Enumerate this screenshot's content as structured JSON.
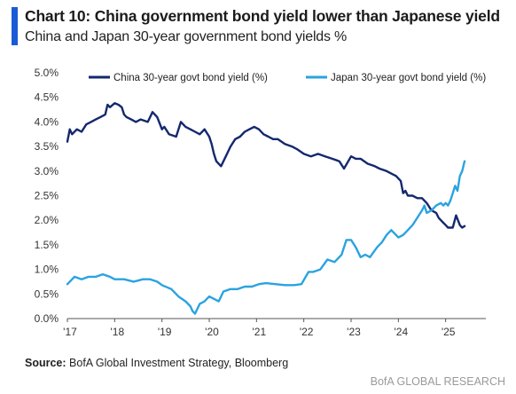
{
  "title": "Chart 10: China government bond yield lower than Japanese yield",
  "subtitle": "China and Japan 30-year government bond yields %",
  "source_label": "Source:",
  "source_text": "BofA Global Investment Strategy, Bloomberg",
  "brand": "BofA GLOBAL RESEARCH",
  "colors": {
    "china": "#14286e",
    "japan": "#2aa3e0",
    "accent": "#1a5ad7",
    "axis": "#555555"
  },
  "chart_data": {
    "type": "line",
    "x_unit": "year",
    "xlim": [
      2017.0,
      2025.85
    ],
    "ylim": [
      0,
      5
    ],
    "y_ticks": [
      0,
      0.5,
      1,
      1.5,
      2,
      2.5,
      3,
      3.5,
      4,
      4.5,
      5
    ],
    "y_tick_labels": [
      "0.0%",
      "0.5%",
      "1.0%",
      "1.5%",
      "2.0%",
      "2.5%",
      "3.0%",
      "3.5%",
      "4.0%",
      "4.5%",
      "5.0%"
    ],
    "x_ticks": [
      2017,
      2018,
      2019,
      2020,
      2021,
      2022,
      2023,
      2024,
      2025
    ],
    "x_tick_labels": [
      "'17",
      "'18",
      "'19",
      "'20",
      "'21",
      "'22",
      "'23",
      "'24",
      "'25"
    ],
    "grid": false,
    "legend_placement": "top",
    "series": [
      {
        "name": "China 30-year govt bond yield (%)",
        "color": "#14286e",
        "points": [
          [
            2017.0,
            3.6
          ],
          [
            2017.05,
            3.85
          ],
          [
            2017.1,
            3.75
          ],
          [
            2017.2,
            3.85
          ],
          [
            2017.3,
            3.8
          ],
          [
            2017.4,
            3.95
          ],
          [
            2017.5,
            4.0
          ],
          [
            2017.6,
            4.05
          ],
          [
            2017.7,
            4.1
          ],
          [
            2017.8,
            4.15
          ],
          [
            2017.85,
            4.35
          ],
          [
            2017.9,
            4.3
          ],
          [
            2018.0,
            4.38
          ],
          [
            2018.08,
            4.35
          ],
          [
            2018.15,
            4.3
          ],
          [
            2018.2,
            4.15
          ],
          [
            2018.25,
            4.1
          ],
          [
            2018.35,
            4.05
          ],
          [
            2018.45,
            4.0
          ],
          [
            2018.55,
            4.05
          ],
          [
            2018.7,
            4.0
          ],
          [
            2018.8,
            4.2
          ],
          [
            2018.9,
            4.1
          ],
          [
            2019.0,
            3.85
          ],
          [
            2019.05,
            3.9
          ],
          [
            2019.15,
            3.75
          ],
          [
            2019.3,
            3.7
          ],
          [
            2019.4,
            4.0
          ],
          [
            2019.5,
            3.9
          ],
          [
            2019.6,
            3.85
          ],
          [
            2019.7,
            3.8
          ],
          [
            2019.8,
            3.75
          ],
          [
            2019.9,
            3.85
          ],
          [
            2020.0,
            3.7
          ],
          [
            2020.05,
            3.55
          ],
          [
            2020.1,
            3.35
          ],
          [
            2020.15,
            3.2
          ],
          [
            2020.25,
            3.1
          ],
          [
            2020.35,
            3.3
          ],
          [
            2020.45,
            3.5
          ],
          [
            2020.55,
            3.65
          ],
          [
            2020.65,
            3.7
          ],
          [
            2020.75,
            3.8
          ],
          [
            2020.85,
            3.85
          ],
          [
            2020.95,
            3.9
          ],
          [
            2021.05,
            3.85
          ],
          [
            2021.15,
            3.75
          ],
          [
            2021.25,
            3.7
          ],
          [
            2021.35,
            3.65
          ],
          [
            2021.45,
            3.65
          ],
          [
            2021.6,
            3.55
          ],
          [
            2021.75,
            3.5
          ],
          [
            2021.85,
            3.45
          ],
          [
            2022.0,
            3.35
          ],
          [
            2022.15,
            3.3
          ],
          [
            2022.3,
            3.35
          ],
          [
            2022.45,
            3.3
          ],
          [
            2022.6,
            3.25
          ],
          [
            2022.75,
            3.2
          ],
          [
            2022.85,
            3.05
          ],
          [
            2023.0,
            3.3
          ],
          [
            2023.1,
            3.25
          ],
          [
            2023.2,
            3.25
          ],
          [
            2023.35,
            3.15
          ],
          [
            2023.5,
            3.1
          ],
          [
            2023.6,
            3.05
          ],
          [
            2023.75,
            3.0
          ],
          [
            2023.85,
            2.95
          ],
          [
            2023.95,
            2.9
          ],
          [
            2024.0,
            2.85
          ],
          [
            2024.05,
            2.8
          ],
          [
            2024.1,
            2.55
          ],
          [
            2024.15,
            2.6
          ],
          [
            2024.2,
            2.5
          ],
          [
            2024.3,
            2.5
          ],
          [
            2024.4,
            2.45
          ],
          [
            2024.5,
            2.45
          ],
          [
            2024.6,
            2.35
          ],
          [
            2024.7,
            2.2
          ],
          [
            2024.8,
            2.15
          ],
          [
            2024.85,
            2.05
          ],
          [
            2024.9,
            2.0
          ],
          [
            2024.95,
            1.95
          ],
          [
            2025.0,
            1.9
          ],
          [
            2025.05,
            1.85
          ],
          [
            2025.15,
            1.85
          ],
          [
            2025.22,
            2.1
          ],
          [
            2025.3,
            1.9
          ],
          [
            2025.35,
            1.85
          ],
          [
            2025.4,
            1.88
          ]
        ]
      },
      {
        "name": "Japan 30-year govt bond yield (%)",
        "color": "#2aa3e0",
        "points": [
          [
            2017.0,
            0.7
          ],
          [
            2017.05,
            0.75
          ],
          [
            2017.15,
            0.85
          ],
          [
            2017.3,
            0.8
          ],
          [
            2017.45,
            0.85
          ],
          [
            2017.6,
            0.85
          ],
          [
            2017.75,
            0.9
          ],
          [
            2017.9,
            0.85
          ],
          [
            2018.0,
            0.8
          ],
          [
            2018.2,
            0.8
          ],
          [
            2018.4,
            0.75
          ],
          [
            2018.6,
            0.8
          ],
          [
            2018.75,
            0.8
          ],
          [
            2018.9,
            0.75
          ],
          [
            2019.0,
            0.68
          ],
          [
            2019.2,
            0.6
          ],
          [
            2019.35,
            0.45
          ],
          [
            2019.5,
            0.35
          ],
          [
            2019.6,
            0.25
          ],
          [
            2019.65,
            0.15
          ],
          [
            2019.7,
            0.1
          ],
          [
            2019.8,
            0.3
          ],
          [
            2019.9,
            0.35
          ],
          [
            2020.0,
            0.45
          ],
          [
            2020.2,
            0.35
          ],
          [
            2020.3,
            0.55
          ],
          [
            2020.45,
            0.6
          ],
          [
            2020.6,
            0.6
          ],
          [
            2020.75,
            0.65
          ],
          [
            2020.9,
            0.65
          ],
          [
            2021.05,
            0.7
          ],
          [
            2021.2,
            0.72
          ],
          [
            2021.4,
            0.7
          ],
          [
            2021.6,
            0.68
          ],
          [
            2021.8,
            0.68
          ],
          [
            2021.95,
            0.7
          ],
          [
            2022.1,
            0.95
          ],
          [
            2022.2,
            0.95
          ],
          [
            2022.35,
            1.0
          ],
          [
            2022.5,
            1.2
          ],
          [
            2022.65,
            1.15
          ],
          [
            2022.8,
            1.3
          ],
          [
            2022.9,
            1.6
          ],
          [
            2023.0,
            1.6
          ],
          [
            2023.1,
            1.45
          ],
          [
            2023.2,
            1.25
          ],
          [
            2023.3,
            1.3
          ],
          [
            2023.4,
            1.25
          ],
          [
            2023.55,
            1.45
          ],
          [
            2023.65,
            1.55
          ],
          [
            2023.75,
            1.7
          ],
          [
            2023.85,
            1.8
          ],
          [
            2023.95,
            1.7
          ],
          [
            2024.0,
            1.65
          ],
          [
            2024.1,
            1.7
          ],
          [
            2024.2,
            1.8
          ],
          [
            2024.3,
            1.9
          ],
          [
            2024.4,
            2.05
          ],
          [
            2024.5,
            2.2
          ],
          [
            2024.55,
            2.3
          ],
          [
            2024.6,
            2.15
          ],
          [
            2024.7,
            2.2
          ],
          [
            2024.8,
            2.3
          ],
          [
            2024.9,
            2.35
          ],
          [
            2024.95,
            2.3
          ],
          [
            2025.0,
            2.35
          ],
          [
            2025.05,
            2.3
          ],
          [
            2025.1,
            2.4
          ],
          [
            2025.15,
            2.55
          ],
          [
            2025.2,
            2.7
          ],
          [
            2025.25,
            2.6
          ],
          [
            2025.3,
            2.9
          ],
          [
            2025.35,
            3.0
          ],
          [
            2025.4,
            3.2
          ]
        ]
      }
    ]
  }
}
